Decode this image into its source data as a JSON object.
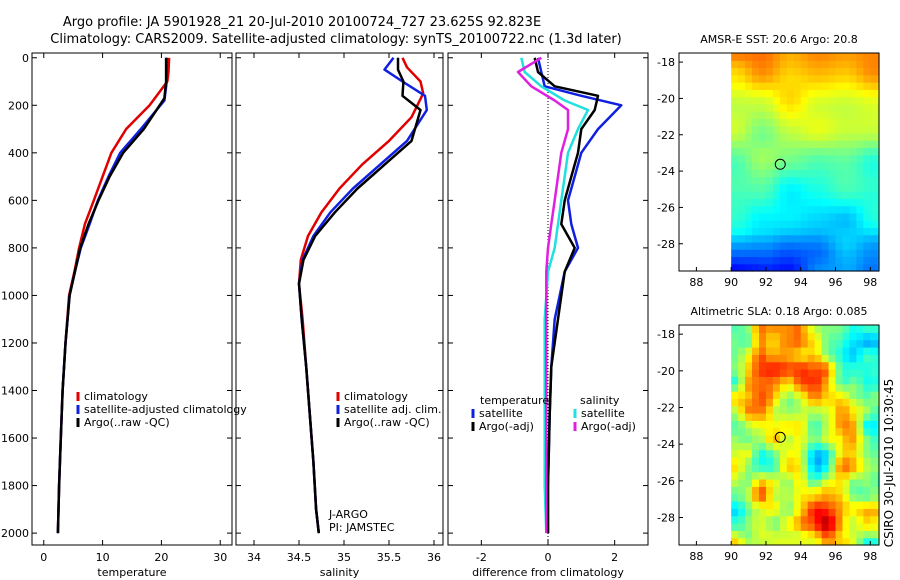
{
  "header": {
    "line1": "Argo profile: JA 5901928_21 20-Jul-2010 20100724_727 23.625S 92.823E",
    "line2": "Climatology: CARS2009. Satellite-adjusted climatology: synTS_20100722.nc (1.3d later)"
  },
  "side_label": "CSIRO 30-Jul-2010 10:30:45",
  "colors": {
    "red": "#e00000",
    "blue": "#1020e0",
    "black": "#000000",
    "cyan": "#20e0e0",
    "magenta": "#e020e0"
  },
  "chart_data": [
    {
      "type": "line",
      "id": "temperature",
      "xlabel": "temperature",
      "xlim": [
        -2,
        32
      ],
      "ylim": [
        2050,
        -20
      ],
      "xticks": [
        0,
        10,
        20,
        30
      ],
      "yticks": [
        0,
        200,
        400,
        600,
        800,
        1000,
        1200,
        1400,
        1600,
        1800,
        2000
      ],
      "legend": [
        "climatology",
        "satellite-adjusted climatology",
        "Argo(..raw -QC)"
      ],
      "series": [
        {
          "name": "climatology",
          "color": "red",
          "x": [
            21.3,
            21.2,
            21.0,
            18.0,
            14.0,
            11.5,
            10.0,
            8.5,
            7.0,
            6.0,
            5.2,
            4.3,
            3.7,
            3.2,
            2.9,
            2.6,
            2.4
          ],
          "y": [
            0,
            60,
            100,
            200,
            300,
            400,
            500,
            600,
            700,
            800,
            900,
            1000,
            1200,
            1400,
            1600,
            1800,
            2000
          ]
        },
        {
          "name": "satellite-adjusted climatology",
          "color": "blue",
          "x": [
            20.9,
            20.9,
            20.9,
            20.5,
            16.5,
            13.0,
            11.0,
            9.2,
            7.8,
            6.3,
            5.3,
            4.4,
            3.7,
            3.2,
            2.9,
            2.6,
            2.4
          ],
          "y": [
            0,
            60,
            100,
            180,
            300,
            400,
            500,
            600,
            700,
            800,
            900,
            1000,
            1200,
            1400,
            1600,
            1800,
            2000
          ]
        },
        {
          "name": "Argo(..raw -QC)",
          "color": "black",
          "x": [
            20.8,
            20.8,
            20.8,
            20.5,
            17.0,
            13.5,
            11.2,
            9.3,
            7.6,
            6.2,
            5.3,
            4.4,
            3.7,
            3.2,
            2.9,
            2.6,
            2.4
          ],
          "y": [
            0,
            60,
            100,
            170,
            300,
            400,
            500,
            600,
            700,
            800,
            900,
            1000,
            1200,
            1400,
            1600,
            1800,
            2000
          ]
        }
      ]
    },
    {
      "type": "line",
      "id": "salinity",
      "xlabel": "salinity",
      "xlim": [
        33.8,
        36.1
      ],
      "ylim": [
        2050,
        -20
      ],
      "xticks": [
        34,
        34.5,
        35,
        35.5,
        36
      ],
      "legend": [
        "climatology",
        "satellite adj. clim.",
        "Argo(..raw -QC)"
      ],
      "annotation": [
        "J-ARGO",
        "PI: JAMSTEC"
      ],
      "series": [
        {
          "name": "climatology",
          "color": "red",
          "x": [
            35.65,
            35.7,
            35.85,
            35.88,
            35.75,
            35.5,
            35.2,
            34.95,
            34.75,
            34.6,
            34.52,
            34.5,
            34.54,
            34.58,
            34.62,
            34.66,
            34.69,
            34.72
          ],
          "y": [
            0,
            40,
            100,
            150,
            250,
            350,
            450,
            550,
            650,
            750,
            850,
            950,
            1100,
            1300,
            1500,
            1700,
            1900,
            2000
          ]
        },
        {
          "name": "satellite adj. clim.",
          "color": "blue",
          "x": [
            35.55,
            35.45,
            35.65,
            35.9,
            35.92,
            35.7,
            35.4,
            35.1,
            34.85,
            34.66,
            34.54,
            34.5,
            34.53,
            34.58,
            34.62,
            34.66,
            34.69,
            34.72
          ],
          "y": [
            0,
            50,
            100,
            160,
            220,
            350,
            450,
            550,
            650,
            750,
            850,
            950,
            1100,
            1300,
            1500,
            1700,
            1900,
            2000
          ]
        },
        {
          "name": "Argo(..raw -QC)",
          "color": "black",
          "x": [
            35.6,
            35.6,
            35.66,
            35.65,
            35.85,
            35.75,
            35.45,
            35.15,
            34.9,
            34.68,
            34.55,
            34.5,
            34.53,
            34.58,
            34.62,
            34.66,
            34.69,
            34.72
          ],
          "y": [
            0,
            50,
            100,
            160,
            220,
            350,
            450,
            550,
            650,
            750,
            850,
            950,
            1100,
            1300,
            1500,
            1700,
            1900,
            2000
          ]
        }
      ]
    },
    {
      "type": "line",
      "id": "difference",
      "xlabel": "difference from climatology",
      "xlim": [
        -3,
        3
      ],
      "ylim": [
        2050,
        -20
      ],
      "xticks": [
        -2,
        0,
        2
      ],
      "legend_titles": [
        "temperature",
        "salinity"
      ],
      "legend": [
        "satellite",
        "Argo(-adj)",
        "satellite",
        "Argo(-adj)"
      ],
      "series": [
        {
          "name": "temperature satellite",
          "color": "blue",
          "x": [
            -0.3,
            -0.2,
            -0.1,
            1.0,
            2.2,
            1.5,
            1.0,
            0.8,
            0.6,
            0.7,
            0.9,
            0.5,
            0.2,
            0.1,
            0.05,
            0.0,
            0.0
          ],
          "y": [
            0,
            60,
            120,
            160,
            200,
            300,
            400,
            500,
            600,
            700,
            800,
            900,
            1100,
            1300,
            1500,
            1800,
            2000
          ]
        },
        {
          "name": "temperature Argo(-adj)",
          "color": "black",
          "x": [
            -0.4,
            -0.3,
            0.2,
            1.5,
            1.4,
            1.0,
            0.9,
            0.7,
            0.5,
            0.4,
            0.8,
            0.5,
            0.3,
            0.1,
            0.05,
            0.0,
            0.0
          ],
          "y": [
            0,
            60,
            120,
            160,
            220,
            300,
            400,
            500,
            600,
            700,
            800,
            900,
            1100,
            1300,
            1500,
            1800,
            2000
          ]
        },
        {
          "name": "salinity satellite",
          "color": "cyan",
          "x": [
            -0.8,
            -0.7,
            -0.2,
            0.5,
            1.2,
            0.9,
            0.6,
            0.5,
            0.4,
            0.3,
            0.2,
            0.0,
            -0.1,
            -0.1,
            -0.1,
            -0.1,
            -0.05
          ],
          "y": [
            0,
            60,
            120,
            180,
            220,
            300,
            400,
            500,
            600,
            700,
            800,
            900,
            1100,
            1300,
            1500,
            1800,
            2000
          ]
        },
        {
          "name": "salinity Argo(-adj)",
          "color": "magenta",
          "x": [
            -0.2,
            -0.9,
            -0.5,
            0.2,
            0.6,
            0.6,
            0.4,
            0.3,
            0.2,
            0.1,
            0.0,
            -0.05,
            -0.05,
            -0.05,
            -0.05,
            -0.05,
            -0.05
          ],
          "y": [
            0,
            60,
            120,
            180,
            220,
            300,
            400,
            500,
            600,
            700,
            800,
            900,
            1100,
            1300,
            1500,
            1800,
            2000
          ]
        }
      ]
    },
    {
      "type": "heatmap",
      "id": "sst_map",
      "title": "AMSR-E SST: 20.6 Argo: 20.8",
      "xlim": [
        87,
        98.5
      ],
      "ylim": [
        -29.5,
        -17.5
      ],
      "xticks": [
        88,
        90,
        92,
        94,
        96,
        98
      ],
      "yticks": [
        -18,
        -20,
        -22,
        -24,
        -26,
        -28
      ],
      "marker": {
        "lon": 92.823,
        "lat": -23.625
      }
    },
    {
      "type": "heatmap",
      "id": "sla_map",
      "title": "Altimetric SLA: 0.18 Argo: 0.085",
      "xlim": [
        87,
        98.5
      ],
      "ylim": [
        -29.5,
        -17.5
      ],
      "xticks": [
        88,
        90,
        92,
        94,
        96,
        98
      ],
      "yticks": [
        -18,
        -20,
        -22,
        -24,
        -26,
        -28
      ],
      "marker": {
        "lon": 92.823,
        "lat": -23.625
      }
    }
  ]
}
